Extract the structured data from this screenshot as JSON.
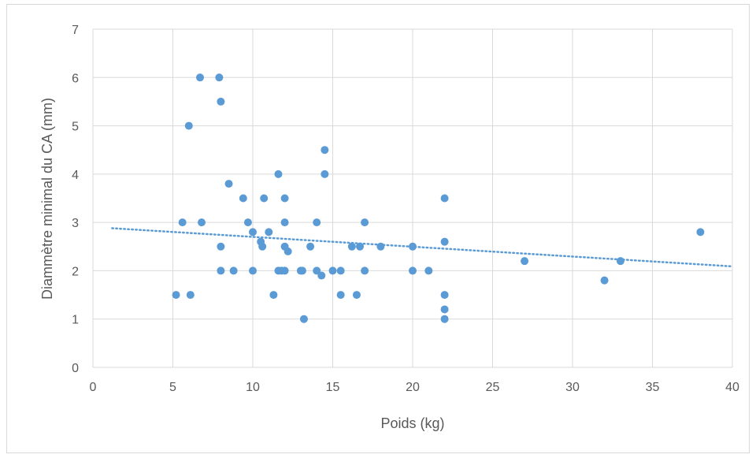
{
  "chart_data": {
    "type": "scatter",
    "title": "",
    "xlabel": "Poids (kg)",
    "ylabel": "Diammètre minimal du CA (mm)",
    "xlim": [
      0,
      40
    ],
    "ylim": [
      0,
      7
    ],
    "x_ticks": [
      0,
      5,
      10,
      15,
      20,
      25,
      30,
      35,
      40
    ],
    "y_ticks": [
      0,
      1,
      2,
      3,
      4,
      5,
      6,
      7
    ],
    "grid": true,
    "legend": "none",
    "point_color": "#5b9bd5",
    "trendline": {
      "type": "linear",
      "style": "dotted",
      "color": "#5b9bd5",
      "x": [
        1.2,
        40
      ],
      "y": [
        2.88,
        2.09
      ]
    },
    "points": [
      {
        "x": 5.2,
        "y": 1.5
      },
      {
        "x": 5.6,
        "y": 3.0
      },
      {
        "x": 6.0,
        "y": 5.0
      },
      {
        "x": 6.1,
        "y": 1.5
      },
      {
        "x": 6.7,
        "y": 6.0
      },
      {
        "x": 6.8,
        "y": 3.0
      },
      {
        "x": 7.9,
        "y": 6.0
      },
      {
        "x": 8.0,
        "y": 5.5
      },
      {
        "x": 8.0,
        "y": 2.5
      },
      {
        "x": 8.0,
        "y": 2.0
      },
      {
        "x": 8.5,
        "y": 3.8
      },
      {
        "x": 8.8,
        "y": 2.0
      },
      {
        "x": 9.4,
        "y": 3.5
      },
      {
        "x": 9.7,
        "y": 3.0
      },
      {
        "x": 10.0,
        "y": 2.8
      },
      {
        "x": 10.0,
        "y": 2.0
      },
      {
        "x": 10.5,
        "y": 2.6
      },
      {
        "x": 10.6,
        "y": 2.5
      },
      {
        "x": 10.7,
        "y": 3.5
      },
      {
        "x": 11.0,
        "y": 2.8
      },
      {
        "x": 11.3,
        "y": 1.5
      },
      {
        "x": 11.6,
        "y": 4.0
      },
      {
        "x": 11.6,
        "y": 2.0
      },
      {
        "x": 11.8,
        "y": 2.0
      },
      {
        "x": 12.0,
        "y": 3.5
      },
      {
        "x": 12.0,
        "y": 3.0
      },
      {
        "x": 12.0,
        "y": 2.5
      },
      {
        "x": 12.0,
        "y": 2.0
      },
      {
        "x": 12.2,
        "y": 2.4
      },
      {
        "x": 13.0,
        "y": 2.0
      },
      {
        "x": 13.1,
        "y": 2.0
      },
      {
        "x": 13.2,
        "y": 1.0
      },
      {
        "x": 13.6,
        "y": 2.5
      },
      {
        "x": 14.0,
        "y": 3.0
      },
      {
        "x": 14.0,
        "y": 2.0
      },
      {
        "x": 14.3,
        "y": 1.9
      },
      {
        "x": 14.5,
        "y": 4.5
      },
      {
        "x": 14.5,
        "y": 4.0
      },
      {
        "x": 15.0,
        "y": 2.0
      },
      {
        "x": 15.5,
        "y": 2.0
      },
      {
        "x": 15.5,
        "y": 1.5
      },
      {
        "x": 16.2,
        "y": 2.5
      },
      {
        "x": 16.5,
        "y": 1.5
      },
      {
        "x": 16.7,
        "y": 2.5
      },
      {
        "x": 17.0,
        "y": 3.0
      },
      {
        "x": 17.0,
        "y": 2.0
      },
      {
        "x": 18.0,
        "y": 2.5
      },
      {
        "x": 20.0,
        "y": 2.5
      },
      {
        "x": 20.0,
        "y": 2.0
      },
      {
        "x": 21.0,
        "y": 2.0
      },
      {
        "x": 22.0,
        "y": 3.5
      },
      {
        "x": 22.0,
        "y": 2.6
      },
      {
        "x": 22.0,
        "y": 1.5
      },
      {
        "x": 22.0,
        "y": 1.2
      },
      {
        "x": 22.0,
        "y": 1.0
      },
      {
        "x": 27.0,
        "y": 2.2
      },
      {
        "x": 32.0,
        "y": 1.8
      },
      {
        "x": 33.0,
        "y": 2.2
      },
      {
        "x": 38.0,
        "y": 2.8
      }
    ]
  }
}
